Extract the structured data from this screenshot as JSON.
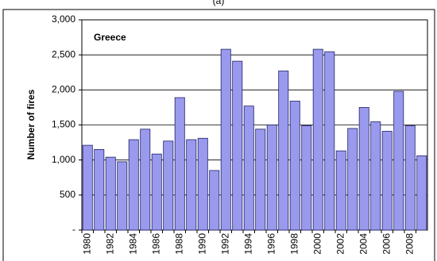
{
  "chart_data": {
    "type": "bar",
    "title": "(a)",
    "annotation": "Greece",
    "ylabel": "Number of fires",
    "categories": [
      "1980",
      null,
      "1982",
      null,
      "1984",
      null,
      "1986",
      null,
      "1988",
      null,
      "1990",
      null,
      "1992",
      null,
      "1994",
      null,
      "1996",
      null,
      "1998",
      null,
      "2000",
      null,
      "2002",
      null,
      "2004",
      null,
      "2006",
      null,
      "2008",
      null
    ],
    "values": [
      1210,
      1150,
      1040,
      975,
      1290,
      1440,
      1085,
      1270,
      1890,
      1290,
      1310,
      850,
      2580,
      2410,
      1770,
      1440,
      1500,
      2270,
      1840,
      1490,
      2580,
      2545,
      1130,
      1450,
      1750,
      1545,
      1410,
      1980,
      1490,
      1060
    ],
    "color": "#9999ee",
    "ylim": [
      0,
      3000
    ],
    "yticks": [
      {
        "value": 0,
        "label": "-"
      },
      500,
      {
        "value": 1000,
        "label": "1,000"
      },
      {
        "value": 1500,
        "label": "1,500"
      },
      {
        "value": 2000,
        "label": "2,000"
      },
      {
        "value": 2500,
        "label": "2,500"
      },
      {
        "value": 3000,
        "label": "3,000"
      }
    ],
    "grid": true
  }
}
